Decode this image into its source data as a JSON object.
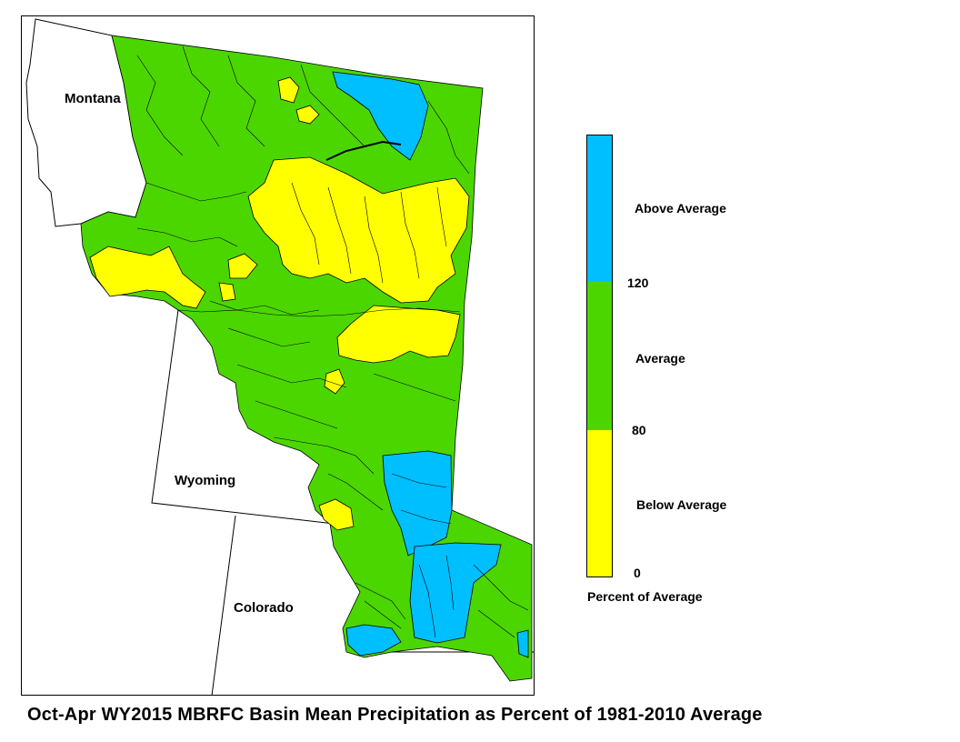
{
  "map": {
    "states": {
      "montana": "Montana",
      "wyoming": "Wyoming",
      "colorado": "Colorado"
    },
    "colors": {
      "above": "#00bfff",
      "average": "#4cd600",
      "below": "#ffff00",
      "outline": "#000000"
    }
  },
  "legend": {
    "categories": [
      {
        "label": "Above Average",
        "range": [
          120,
          null
        ],
        "color": "#00bfff"
      },
      {
        "label": "Average",
        "range": [
          80,
          120
        ],
        "color": "#4cd600"
      },
      {
        "label": "Below Average",
        "range": [
          0,
          80
        ],
        "color": "#ffff00"
      }
    ],
    "ticks": [
      "120",
      "80",
      "0"
    ],
    "title": "Percent of Average"
  },
  "caption": "Oct-Apr WY2015 MBRFC Basin Mean Precipitation as Percent of 1981-2010 Average"
}
